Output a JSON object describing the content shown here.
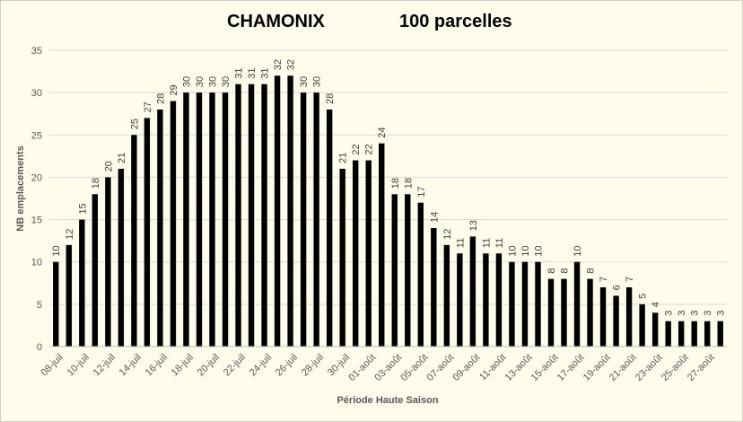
{
  "chart_data": {
    "type": "bar",
    "title_main": "CHAMONIX",
    "title_secondary": "100 parcelles",
    "xlabel": "Période Haute Saison",
    "ylabel": "NB emplacements",
    "ylim": [
      0,
      35
    ],
    "yticks": [
      0,
      5,
      10,
      15,
      20,
      25,
      30,
      35
    ],
    "grid": true,
    "legend": "none",
    "bar_color": "#000000",
    "categories": [
      "08-juil",
      "09-juil",
      "10-juil",
      "11-juil",
      "12-juil",
      "13-juil",
      "14-juil",
      "15-juil",
      "16-juil",
      "17-juil",
      "18-juil",
      "19-juil",
      "20-juil",
      "21-juil",
      "22-juil",
      "23-juil",
      "24-juil",
      "25-juil",
      "26-juil",
      "27-juil",
      "28-juil",
      "29-juil",
      "30-juil",
      "31-juil",
      "01-août",
      "02-août",
      "03-août",
      "04-août",
      "05-août",
      "06-août",
      "07-août",
      "08-août",
      "09-août",
      "10-août",
      "11-août",
      "12-août",
      "13-août",
      "14-août",
      "15-août",
      "16-août",
      "17-août",
      "18-août",
      "19-août",
      "20-août",
      "21-août",
      "22-août",
      "23-août",
      "24-août",
      "25-août",
      "26-août",
      "27-août",
      "28-août"
    ],
    "shown_tick_labels": [
      "08-juil",
      "10-juil",
      "12-juil",
      "14-juil",
      "16-juil",
      "18-juil",
      "20-juil",
      "22-juil",
      "24-juil",
      "26-juil",
      "28-juil",
      "30-juil",
      "01-août",
      "03-août",
      "05-août",
      "07-août",
      "09-août",
      "11-août",
      "13-août",
      "15-août",
      "17-août",
      "19-août",
      "21-août",
      "23-août",
      "25-août",
      "27-août"
    ],
    "values": [
      10,
      12,
      15,
      18,
      20,
      21,
      25,
      27,
      28,
      29,
      30,
      30,
      30,
      30,
      31,
      31,
      31,
      32,
      32,
      30,
      30,
      28,
      21,
      22,
      22,
      24,
      18,
      18,
      17,
      14,
      12,
      11,
      13,
      11,
      11,
      10,
      10,
      10,
      8,
      8,
      10,
      8,
      7,
      6,
      7,
      5,
      4,
      3,
      3,
      3,
      3,
      3
    ]
  }
}
